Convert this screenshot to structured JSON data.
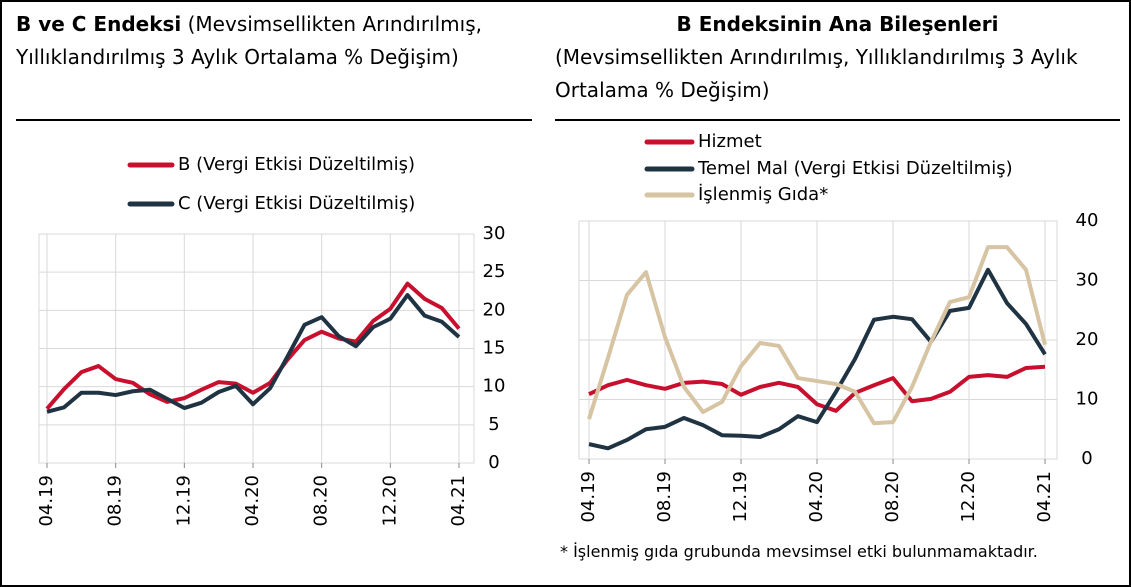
{
  "chart_data": [
    {
      "type": "line",
      "title": "B ve C Endeksi",
      "subtitle": "(Mevsimsellikten Arındırılmış, Yıllıklandırılmış 3 Aylık Ortalama % Değişim)",
      "categories": [
        "04.19",
        null,
        null,
        null,
        "08.19",
        null,
        null,
        null,
        "12.19",
        null,
        null,
        null,
        "04.20",
        null,
        null,
        null,
        "08.20",
        null,
        null,
        null,
        "12.20",
        null,
        null,
        null,
        "04.21"
      ],
      "series": [
        {
          "name": "B (Vergi Etkisi Düzeltilmiş)",
          "color": "#c8102e",
          "values": [
            7.1,
            9.7,
            11.9,
            12.7,
            11,
            10.5,
            9,
            8,
            8.5,
            9.6,
            10.6,
            10.4,
            9.2,
            10.5,
            13.5,
            16.1,
            17.2,
            16.3,
            15.9,
            18.6,
            20.2,
            23.5,
            21.5,
            20.3,
            17.6
          ]
        },
        {
          "name": "C (Vergi Etkisi Düzeltilmiş)",
          "color": "#1f3342",
          "values": [
            6.7,
            7.3,
            9.2,
            9.2,
            8.9,
            9.4,
            9.6,
            8.4,
            7.2,
            7.9,
            9.3,
            10.1,
            7.7,
            9.8,
            13.9,
            18.1,
            19.1,
            16.6,
            15.3,
            17.8,
            18.9,
            22,
            19.3,
            18.5,
            16.5
          ]
        }
      ],
      "ylim": [
        0,
        30
      ],
      "yticks": [
        0,
        5,
        10,
        15,
        20,
        25,
        30
      ],
      "grid": true
    },
    {
      "type": "line",
      "title": "B Endeksinin Ana Bileşenleri",
      "subtitle": "(Mevsimsellikten Arındırılmış, Yıllıklandırılmış 3 Aylık Ortalama % Değişim)",
      "categories": [
        "04.19",
        null,
        null,
        null,
        "08.19",
        null,
        null,
        null,
        "12.19",
        null,
        null,
        null,
        "04.20",
        null,
        null,
        null,
        "08.20",
        null,
        null,
        null,
        "12.20",
        null,
        null,
        null,
        "04.21"
      ],
      "series": [
        {
          "name": "Hizmet",
          "color": "#c8102e",
          "values": [
            10.9,
            12.4,
            13.3,
            12.4,
            11.8,
            12.8,
            13,
            12.6,
            10.8,
            12.1,
            12.8,
            12.1,
            9.2,
            8.1,
            11.1,
            12.4,
            13.6,
            9.7,
            10.1,
            11.3,
            13.8,
            14.1,
            13.8,
            15.3,
            15.5
          ]
        },
        {
          "name": "Temel Mal (Vergi Etkisi Düzeltilmiş)",
          "color": "#1f3342",
          "values": [
            2.5,
            1.8,
            3.2,
            5,
            5.4,
            6.9,
            5.7,
            4,
            3.9,
            3.7,
            5,
            7.2,
            6.2,
            11.3,
            16.8,
            23.4,
            23.9,
            23.5,
            19.7,
            24.9,
            25.4,
            31.8,
            26.2,
            22.7,
            17.6
          ]
        },
        {
          "name": "İşlenmiş Gıda*",
          "color": "#d6c4a3",
          "values": [
            6.7,
            17,
            27.6,
            31.4,
            20.5,
            12.1,
            7.9,
            9.6,
            15.6,
            19.5,
            19,
            13.6,
            13.1,
            12.6,
            11.3,
            6,
            6.2,
            12.1,
            19.7,
            26.4,
            27.2,
            35.6,
            35.6,
            31.8,
            19.2
          ]
        }
      ],
      "ylim": [
        0,
        40
      ],
      "yticks": [
        0,
        10,
        20,
        30,
        40
      ],
      "grid": true,
      "footnote": "* İşlenmiş gıda grubunda mevsimsel etki bulunmamaktadır."
    }
  ]
}
